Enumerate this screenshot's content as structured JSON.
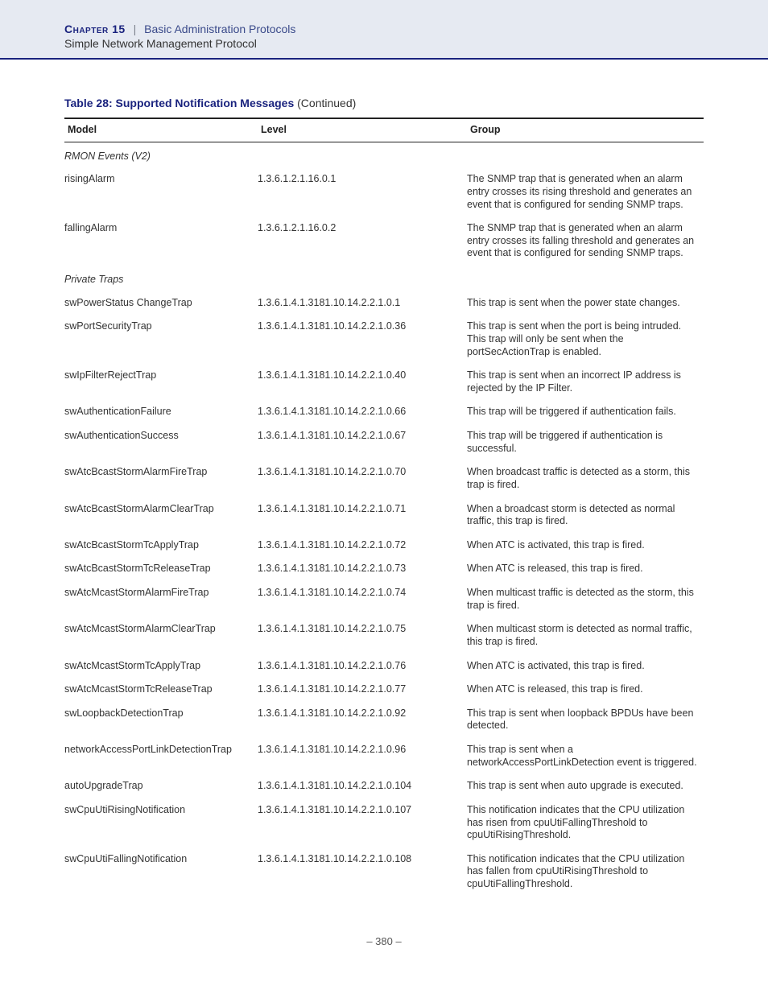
{
  "header": {
    "chapter_label": "Chapter 15",
    "separator": "|",
    "chapter_title": "Basic Administration Protocols",
    "subtitle": "Simple Network Management Protocol"
  },
  "table": {
    "caption_bold": "Table 28: Supported Notification Messages",
    "caption_cont": " (Continued)",
    "columns": {
      "model": "Model",
      "level": "Level",
      "group": "Group"
    },
    "rows": [
      {
        "type": "section",
        "label": "RMON Events (V2)"
      },
      {
        "type": "data",
        "model": "risingAlarm",
        "level": "1.3.6.1.2.1.16.0.1",
        "group": "The SNMP trap that is generated when an alarm entry crosses its rising threshold and generates an event that is configured for sending SNMP traps."
      },
      {
        "type": "data",
        "model": "fallingAlarm",
        "level": "1.3.6.1.2.1.16.0.2",
        "group": "The SNMP trap that is generated when an alarm entry crosses its falling threshold and generates an event that is configured for sending SNMP traps."
      },
      {
        "type": "section",
        "label": "Private Traps"
      },
      {
        "type": "data",
        "model": "swPowerStatus ChangeTrap",
        "level": "1.3.6.1.4.1.3181.10.14.2.2.1.0.1",
        "group": "This trap is sent when the power state changes."
      },
      {
        "type": "data",
        "model": "swPortSecurityTrap",
        "level": "1.3.6.1.4.1.3181.10.14.2.2.1.0.36",
        "group": "This trap is sent when the port is being intruded. This trap will only be sent when the portSecActionTrap is enabled."
      },
      {
        "type": "data",
        "model": "swIpFilterRejectTrap",
        "level": "1.3.6.1.4.1.3181.10.14.2.2.1.0.40",
        "group": "This trap is sent when an incorrect IP address is rejected by the IP Filter."
      },
      {
        "type": "data",
        "model": "swAuthenticationFailure",
        "level": "1.3.6.1.4.1.3181.10.14.2.2.1.0.66",
        "group": "This trap will be triggered if authentication fails."
      },
      {
        "type": "data",
        "model": "swAuthenticationSuccess",
        "level": "1.3.6.1.4.1.3181.10.14.2.2.1.0.67",
        "group": "This trap will be triggered if authentication is successful."
      },
      {
        "type": "data",
        "model": "swAtcBcastStormAlarmFireTrap",
        "level": "1.3.6.1.4.1.3181.10.14.2.2.1.0.70",
        "group": "When broadcast traffic is detected as a storm, this trap is fired."
      },
      {
        "type": "data",
        "model": "swAtcBcastStormAlarmClearTrap",
        "level": "1.3.6.1.4.1.3181.10.14.2.2.1.0.71",
        "group": "When a broadcast storm is detected as normal traffic, this trap is fired."
      },
      {
        "type": "data",
        "model": "swAtcBcastStormTcApplyTrap",
        "level": "1.3.6.1.4.1.3181.10.14.2.2.1.0.72",
        "group": "When ATC is activated, this trap is fired."
      },
      {
        "type": "data",
        "model": "swAtcBcastStormTcReleaseTrap",
        "level": "1.3.6.1.4.1.3181.10.14.2.2.1.0.73",
        "group": "When ATC is released, this trap is fired."
      },
      {
        "type": "data",
        "model": "swAtcMcastStormAlarmFireTrap",
        "level": "1.3.6.1.4.1.3181.10.14.2.2.1.0.74",
        "group": "When multicast traffic is detected as the storm, this trap is fired."
      },
      {
        "type": "data",
        "model": "swAtcMcastStormAlarmClearTrap",
        "level": "1.3.6.1.4.1.3181.10.14.2.2.1.0.75",
        "group": "When multicast storm is detected as normal traffic, this trap is fired."
      },
      {
        "type": "data",
        "model": "swAtcMcastStormTcApplyTrap",
        "level": "1.3.6.1.4.1.3181.10.14.2.2.1.0.76",
        "group": "When ATC is activated, this trap is fired."
      },
      {
        "type": "data",
        "model": "swAtcMcastStormTcReleaseTrap",
        "level": "1.3.6.1.4.1.3181.10.14.2.2.1.0.77",
        "group": "When ATC is released, this trap is fired."
      },
      {
        "type": "data",
        "model": "swLoopbackDetectionTrap",
        "level": "1.3.6.1.4.1.3181.10.14.2.2.1.0.92",
        "group": "This trap is sent when loopback BPDUs have been detected."
      },
      {
        "type": "data",
        "model": "networkAccessPortLinkDetectionTrap",
        "level": "1.3.6.1.4.1.3181.10.14.2.2.1.0.96",
        "group": "This trap is sent when a networkAccessPortLinkDetection event is triggered."
      },
      {
        "type": "data",
        "model": "autoUpgradeTrap",
        "level": "1.3.6.1.4.1.3181.10.14.2.2.1.0.104",
        "group": "This trap is sent when auto upgrade is executed."
      },
      {
        "type": "data",
        "model": "swCpuUtiRisingNotification",
        "level": "1.3.6.1.4.1.3181.10.14.2.2.1.0.107",
        "group": "This notification indicates that the CPU utilization has risen from cpuUtiFallingThreshold to cpuUtiRisingThreshold."
      },
      {
        "type": "data",
        "model": "swCpuUtiFallingNotification",
        "level": "1.3.6.1.4.1.3181.10.14.2.2.1.0.108",
        "group": "This notification indicates that the CPU utilization has fallen from cpuUtiRisingThreshold to cpuUtiFallingThreshold."
      }
    ]
  },
  "footer": {
    "page": "–  380  –"
  }
}
